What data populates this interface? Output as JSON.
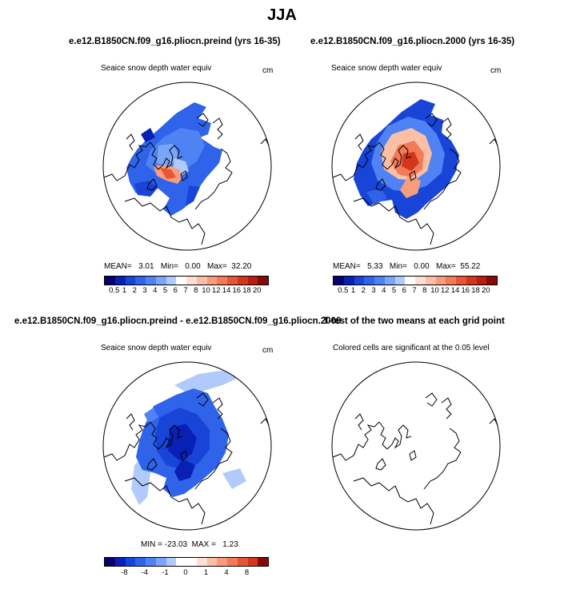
{
  "title": "JJA",
  "colors": {
    "main_cbar": [
      "#08006e",
      "#0820b4",
      "#1844d8",
      "#2e63ea",
      "#4f82f2",
      "#7ba6f8",
      "#b0cbfb",
      "#ffffff",
      "#fde0d2",
      "#fbbfa6",
      "#f79d7e",
      "#f27a57",
      "#e65634",
      "#d3361d",
      "#b71d10",
      "#860b08"
    ],
    "diff_cbar": [
      "#08006e",
      "#0820b4",
      "#1844d8",
      "#2e63ea",
      "#4f82f2",
      "#7ba6f8",
      "#b0cbfb",
      "#ffffff",
      "#ffffff",
      "#fde0d2",
      "#fbbfa6",
      "#f79d7e",
      "#f27a57",
      "#e65634",
      "#d3361d",
      "#860b08"
    ]
  },
  "panels": [
    {
      "title": "e.e12.B1850CN.f09_g16.pliocn.preind (yrs 16-35)",
      "variable": "Seaice snow depth water equiv",
      "unit": "cm",
      "mean_label": "MEAN=",
      "mean": "3.01",
      "min_label": "Min=",
      "min": "0.00",
      "max_label": "Max=",
      "max": "32.20"
    },
    {
      "title": "e.e12.B1850CN.f09_g16.pliocn.2000 (yrs 16-35)",
      "variable": "Seaice snow depth water equiv",
      "unit": "cm",
      "mean_label": "MEAN=",
      "mean": "5.33",
      "min_label": "Min=",
      "min": "0.00",
      "max_label": "Max=",
      "max": "55.22"
    },
    {
      "title": "e.e12.B1850CN.f09_g16.pliocn.preind - e.e12.B1850CN.f09_g16.pliocn.2000",
      "variable": "Seaice snow depth water equiv",
      "unit": "cm",
      "min_label": "MIN =",
      "min": "-23.03",
      "max_label": "MAX =",
      "max": "1.23"
    },
    {
      "title": "T-test of the two means at each grid point",
      "note": "Colored cells are significant at the 0.05 level"
    }
  ],
  "colorbar_labels": [
    "0.5",
    "1",
    "2",
    "3",
    "4",
    "5",
    "6",
    "7",
    "8",
    "10",
    "12",
    "14",
    "16",
    "18",
    "20"
  ],
  "diff_colorbar_labels": [
    "-8",
    "-4",
    "-1",
    "0",
    "1",
    "4",
    "8"
  ]
}
